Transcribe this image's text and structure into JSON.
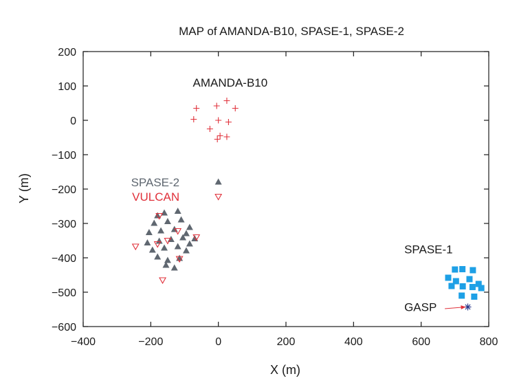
{
  "chart_data": {
    "type": "scatter",
    "title": "MAP of AMANDA-B10, SPASE-1,  SPASE-2",
    "xlabel": "X (m)",
    "ylabel": "Y (m)",
    "xlim": [
      -400,
      800
    ],
    "ylim": [
      -600,
      200
    ],
    "xticks": [
      -400,
      -200,
      0,
      200,
      400,
      600,
      800
    ],
    "yticks": [
      -600,
      -500,
      -400,
      -300,
      -200,
      -100,
      0,
      100,
      200
    ],
    "xtick_labels": [
      "−400",
      "−200",
      "0",
      "200",
      "400",
      "600",
      "800"
    ],
    "ytick_labels": [
      "−600",
      "−500",
      "−400",
      "−300",
      "−200",
      "−100",
      "0",
      "100",
      "200"
    ],
    "grid": false,
    "colors": {
      "amanda": "#e0303a",
      "spase2": "#5f6770",
      "vulcan": "#e0303a",
      "spase1": "#1ea0e6",
      "gasp": "#2b3a8c",
      "axis": "#1a1a1a"
    },
    "series": [
      {
        "name": "AMANDA-B10",
        "marker": "plus",
        "x": [
          -65,
          -5,
          25,
          -73,
          0,
          50,
          -25,
          30,
          5,
          25,
          -3
        ],
        "y": [
          35,
          42,
          57,
          3,
          0,
          35,
          -25,
          -5,
          -45,
          -48,
          -55
        ]
      },
      {
        "name": "SPASE-2",
        "marker": "triangle",
        "x": [
          -180,
          -160,
          -120,
          -190,
          -150,
          -110,
          -85,
          -205,
          -170,
          -130,
          -95,
          -70,
          -210,
          -175,
          -140,
          -105,
          -85,
          -195,
          -160,
          -120,
          -95,
          -180,
          -150,
          -115,
          -155,
          -130
        ],
        "y": [
          -278,
          -270,
          -265,
          -300,
          -295,
          -290,
          -312,
          -327,
          -322,
          -318,
          -330,
          -345,
          -357,
          -352,
          -347,
          -342,
          -360,
          -378,
          -372,
          -368,
          -380,
          -398,
          -408,
          -402,
          -422,
          -430
        ]
      },
      {
        "name": "SPASE-2 (legend symbol)",
        "marker": "triangle",
        "x": [
          0
        ],
        "y": [
          -180
        ]
      },
      {
        "name": "VULCAN",
        "marker": "triangle-down",
        "x": [
          0,
          -175,
          -120,
          -150,
          -180,
          -245,
          -65,
          -115,
          -165
        ],
        "y": [
          -222,
          -278,
          -322,
          -350,
          -360,
          -367,
          -340,
          -403,
          -465
        ]
      },
      {
        "name": "SPASE-1",
        "marker": "square",
        "x": [
          700,
          722,
          753,
          680,
          703,
          743,
          770,
          690,
          723,
          752,
          778,
          720,
          757
        ],
        "y": [
          -434,
          -433,
          -436,
          -458,
          -468,
          -462,
          -476,
          -482,
          -483,
          -485,
          -488,
          -510,
          -513
        ]
      },
      {
        "name": "GASP",
        "marker": "asterisk",
        "x": [
          738
        ],
        "y": [
          -543
        ]
      }
    ],
    "annotations": [
      {
        "text": "AMANDA-B10",
        "x": 35,
        "y": 110,
        "anchor": "middle",
        "color": "#1a1a1a"
      },
      {
        "text": "SPASE-2",
        "x": -115,
        "y": -180,
        "anchor": "end",
        "color": "#5f6770"
      },
      {
        "text": "VULCAN",
        "x": -115,
        "y": -222,
        "anchor": "end",
        "color": "#e0303a"
      },
      {
        "text": "SPASE-1",
        "x": 550,
        "y": -375,
        "anchor": "start",
        "color": "#1a1a1a"
      },
      {
        "text": "GASP",
        "x": 550,
        "y": -543,
        "anchor": "start",
        "color": "#1a1a1a"
      }
    ],
    "arrow": {
      "from": [
        670,
        -548
      ],
      "to": [
        732,
        -543
      ],
      "color": "#e0303a",
      "label": "GASP"
    }
  }
}
